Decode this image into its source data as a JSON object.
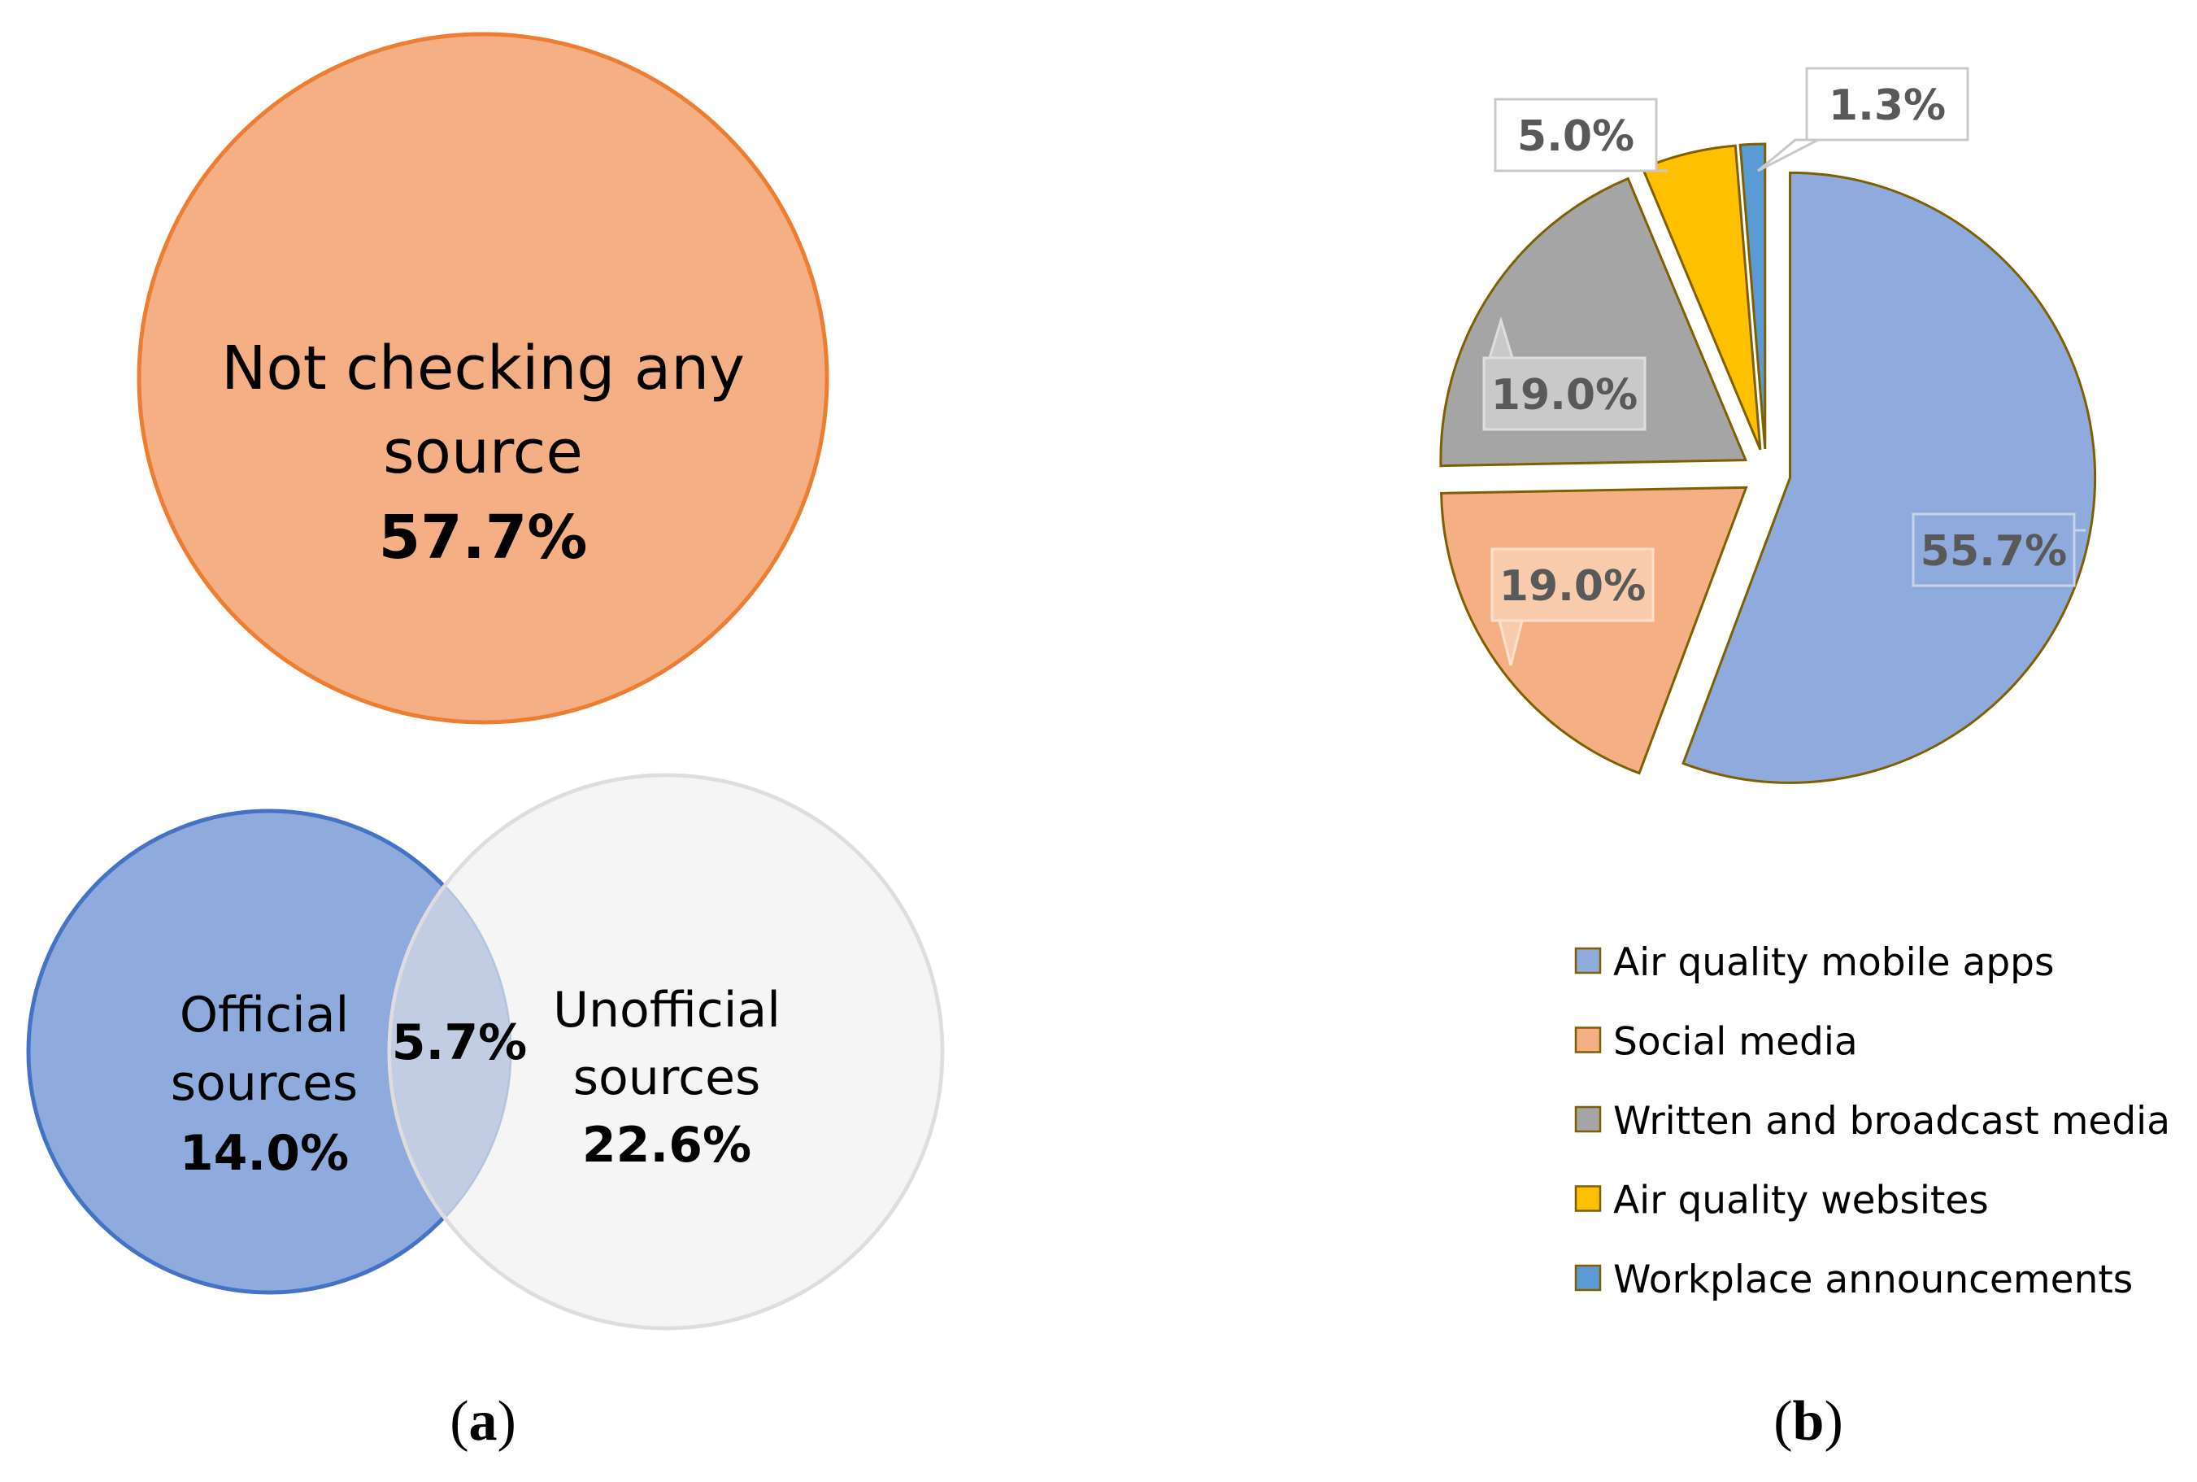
{
  "panel_a": {
    "label_paren_open": "(",
    "label_letter": "a",
    "label_paren_close": ")",
    "not_checking": {
      "line1": "Not checking any",
      "line2": "source",
      "value": "57.7%"
    },
    "official": {
      "line1": "Official",
      "line2": "sources",
      "value": "14.0%"
    },
    "overlap": {
      "value": "5.7%"
    },
    "unofficial": {
      "line1": "Unofficial",
      "line2": "sources",
      "value": "22.6%"
    }
  },
  "panel_b": {
    "label_paren_open": "(",
    "label_letter": "b",
    "label_paren_close": ")"
  },
  "chart_data": [
    {
      "type": "venn",
      "sets": [
        {
          "name": "Not checking any source",
          "value": 57.7,
          "label": "57.7%"
        },
        {
          "name": "Official sources",
          "value": 14.0,
          "label": "14.0%"
        },
        {
          "name": "Unofficial sources",
          "value": 22.6,
          "label": "22.6%"
        },
        {
          "name": "Official ∩ Unofficial",
          "value": 5.7,
          "label": "5.7%"
        }
      ],
      "unit": "%",
      "colors": {
        "not_checking_fill": "#f4b084",
        "not_checking_stroke": "#ed7d31",
        "official_fill": "#8faadc",
        "official_stroke": "#4472c4",
        "unofficial_fill": "#f0eff0",
        "unofficial_stroke": "#e6e5e6",
        "overlap_fill": "#c2cce3"
      }
    },
    {
      "type": "pie",
      "exploded": true,
      "start": "12 o'clock, clockwise",
      "legend_position": "below",
      "slices": [
        {
          "name": "Air quality mobile apps",
          "value": 55.7,
          "label": "55.7%",
          "color": "#8faadc"
        },
        {
          "name": "Social media",
          "value": 19.0,
          "label": "19.0%",
          "color": "#f4b084"
        },
        {
          "name": "Written and broadcast media",
          "value": 19.0,
          "label": "19.0%",
          "color": "#a5a5a5"
        },
        {
          "name": "Air quality websites",
          "value": 5.0,
          "label": "5.0%",
          "color": "#ffc000"
        },
        {
          "name": "Workplace announcements",
          "value": 1.3,
          "label": "1.3%",
          "color": "#5b9bd5"
        }
      ],
      "slice_outline_color": "#7f6000",
      "data_label_color": "#595959"
    }
  ]
}
